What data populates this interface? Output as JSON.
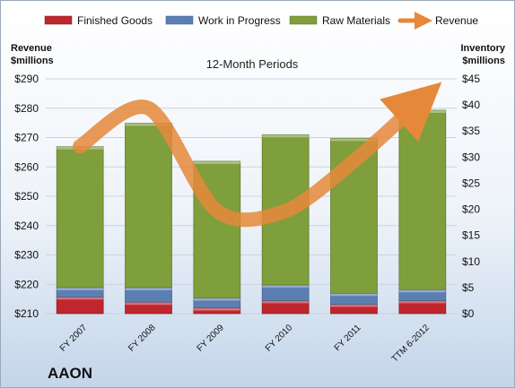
{
  "chart_data": {
    "type": "bar",
    "stacked": true,
    "title": "12-Month Periods",
    "company": "AAON",
    "categories": [
      "FY 2007",
      "FY 2008",
      "FY 2009",
      "FY 2010",
      "FY 2011",
      "TTM 6-2012"
    ],
    "left_axis": {
      "label_line1": "Revenue",
      "label_line2": "$millions",
      "ylim": [
        210,
        290
      ],
      "ticks": [
        "$210",
        "$220",
        "$230",
        "$240",
        "$250",
        "$260",
        "$270",
        "$280",
        "$290"
      ]
    },
    "right_axis": {
      "label_line1": "Inventory",
      "label_line2": "$millions",
      "ylim": [
        0,
        45
      ],
      "ticks": [
        "$0",
        "$5",
        "$10",
        "$15",
        "$20",
        "$25",
        "$30",
        "$35",
        "$40",
        "$45"
      ]
    },
    "series": [
      {
        "name": "Finished Goods",
        "axis": "right",
        "color": "#c0262d",
        "values": [
          3.2,
          2.2,
          1.1,
          2.5,
          1.8,
          2.5
        ]
      },
      {
        "name": "Work in Progress",
        "axis": "right",
        "color": "#5b7fb3",
        "values": [
          1.8,
          2.8,
          1.9,
          3.0,
          2.1,
          2.1
        ]
      },
      {
        "name": "Raw Materials",
        "axis": "right",
        "color": "#7f9e3c",
        "values": [
          27.0,
          31.5,
          26.2,
          28.8,
          29.7,
          34.4
        ]
      },
      {
        "name": "Revenue",
        "axis": "left",
        "type": "line",
        "color": "#e5883a",
        "values": [
          267,
          280,
          245,
          245,
          262,
          283
        ]
      }
    ],
    "grid": true,
    "legend_position": "top"
  }
}
